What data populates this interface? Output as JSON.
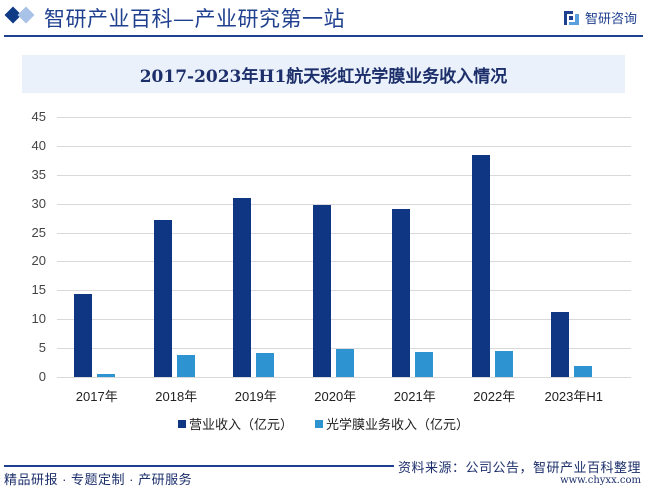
{
  "header": {
    "site_title": "智研产业百科—产业研究第一站",
    "brand_name": "智研咨询"
  },
  "chart_data": {
    "type": "bar",
    "title": "2017-2023年H1航天彩虹光学膜业务收入情况",
    "categories": [
      "2017年",
      "2018年",
      "2019年",
      "2020年",
      "2021年",
      "2022年",
      "2023年H1"
    ],
    "series": [
      {
        "name": "营业收入（亿元）",
        "color": "#0f3683",
        "values": [
          14.3,
          27.1,
          30.9,
          29.7,
          29.0,
          38.5,
          11.2
        ]
      },
      {
        "name": "光学膜业务收入（亿元）",
        "color": "#2e93d1",
        "values": [
          0.5,
          3.8,
          4.1,
          4.8,
          4.3,
          4.5,
          1.9
        ]
      }
    ],
    "xlabel": "",
    "ylabel": "",
    "ylim": [
      0,
      45
    ],
    "yticks": [
      0,
      5,
      10,
      15,
      20,
      25,
      30,
      35,
      40,
      45
    ],
    "grid": true,
    "legend_position": "bottom"
  },
  "footer": {
    "tagline": "精品研报 · 专题定制 · 产研服务",
    "source": "资料来源：公司公告，智研产业百科整理",
    "url": "www.chyxx.com"
  }
}
